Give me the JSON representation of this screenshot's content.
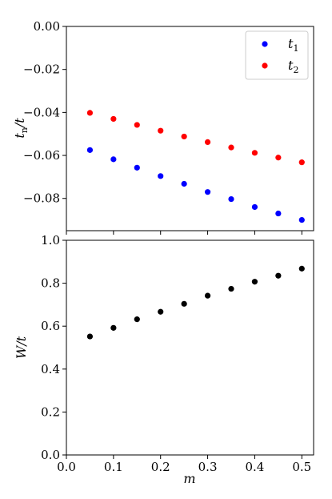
{
  "chart_data": [
    {
      "type": "scatter",
      "x": [
        0.05,
        0.1,
        0.15,
        0.2,
        0.25,
        0.3,
        0.35,
        0.4,
        0.45,
        0.5
      ],
      "series": [
        {
          "name": "t_1",
          "name_main": "t",
          "name_sub": "1",
          "color": "#0000ff",
          "values": [
            -0.0575,
            -0.0618,
            -0.0657,
            -0.0696,
            -0.0732,
            -0.077,
            -0.0803,
            -0.084,
            -0.087,
            -0.09
          ]
        },
        {
          "name": "t_2",
          "name_main": "t",
          "name_sub": "2",
          "color": "#ff0000",
          "values": [
            -0.0402,
            -0.043,
            -0.0458,
            -0.0485,
            -0.0512,
            -0.0538,
            -0.0563,
            -0.0588,
            -0.061,
            -0.0632
          ]
        }
      ],
      "ylabel": "t_n/t",
      "ylabel_parts": {
        "main": "t",
        "sub": "n",
        "rest": "/t"
      },
      "xlabel": "",
      "ylim": [
        -0.095,
        0.0
      ],
      "xlim": [
        0.0,
        0.525
      ],
      "yticks": [
        0.0,
        -0.02,
        -0.04,
        -0.06,
        -0.08
      ],
      "ytick_labels": [
        "0.00",
        "−0.02",
        "−0.04",
        "−0.06",
        "−0.08"
      ],
      "legend": "top-right",
      "grid": false
    },
    {
      "type": "scatter",
      "x": [
        0.05,
        0.1,
        0.15,
        0.2,
        0.25,
        0.3,
        0.35,
        0.4,
        0.45,
        0.5
      ],
      "series": [
        {
          "color": "#000000",
          "values": [
            0.552,
            0.592,
            0.632,
            0.667,
            0.704,
            0.742,
            0.774,
            0.807,
            0.835,
            0.868
          ]
        }
      ],
      "ylabel": "W/t",
      "xlabel": "m",
      "ylim": [
        0.0,
        1.0
      ],
      "xlim": [
        0.0,
        0.525
      ],
      "yticks": [
        0.0,
        0.2,
        0.4,
        0.6,
        0.8,
        1.0
      ],
      "ytick_labels": [
        "0.0",
        "0.2",
        "0.4",
        "0.6",
        "0.8",
        "1.0"
      ],
      "xticks": [
        0.0,
        0.1,
        0.2,
        0.3,
        0.4,
        0.5
      ],
      "xtick_labels": [
        "0.0",
        "0.1",
        "0.2",
        "0.3",
        "0.4",
        "0.5"
      ],
      "grid": false
    }
  ]
}
